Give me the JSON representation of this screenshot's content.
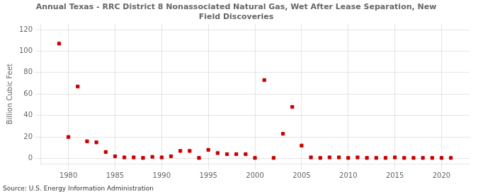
{
  "chart_data": {
    "type": "scatter",
    "title": "Annual Texas - RRC District 8 Nonassociated Natural Gas, Wet After Lease Separation, New\nField Discoveries",
    "ylabel": "Billion Cubic Feet",
    "source": "Source: U.S. Energy Information Administration",
    "color": "#cc0000",
    "marker": "square",
    "grid": true,
    "xlim": [
      1977,
      2023
    ],
    "ylim": [
      -5,
      125
    ],
    "xticks": [
      1980,
      1985,
      1990,
      1995,
      2000,
      2005,
      2010,
      2015,
      2020
    ],
    "yticks": [
      0,
      20,
      40,
      60,
      80,
      100,
      120
    ],
    "x": [
      1979,
      1980,
      1981,
      1982,
      1983,
      1984,
      1985,
      1986,
      1987,
      1988,
      1989,
      1990,
      1991,
      1992,
      1993,
      1994,
      1995,
      1996,
      1997,
      1998,
      1999,
      2000,
      2001,
      2002,
      2003,
      2004,
      2005,
      2006,
      2007,
      2008,
      2009,
      2010,
      2011,
      2012,
      2013,
      2014,
      2015,
      2016,
      2017,
      2018,
      2019,
      2020,
      2021
    ],
    "values": [
      107,
      20,
      67,
      16,
      15,
      6,
      2,
      1,
      1,
      0.5,
      1.5,
      1,
      2,
      7,
      7,
      0.5,
      8,
      5,
      4,
      4,
      4,
      0.5,
      73,
      0.5,
      23,
      48,
      12,
      1,
      0.5,
      1,
      1,
      0.5,
      1,
      0.5,
      0.5,
      0.5,
      1,
      0.5,
      0.5,
      0.5,
      0.5,
      0.5,
      0.5
    ]
  }
}
